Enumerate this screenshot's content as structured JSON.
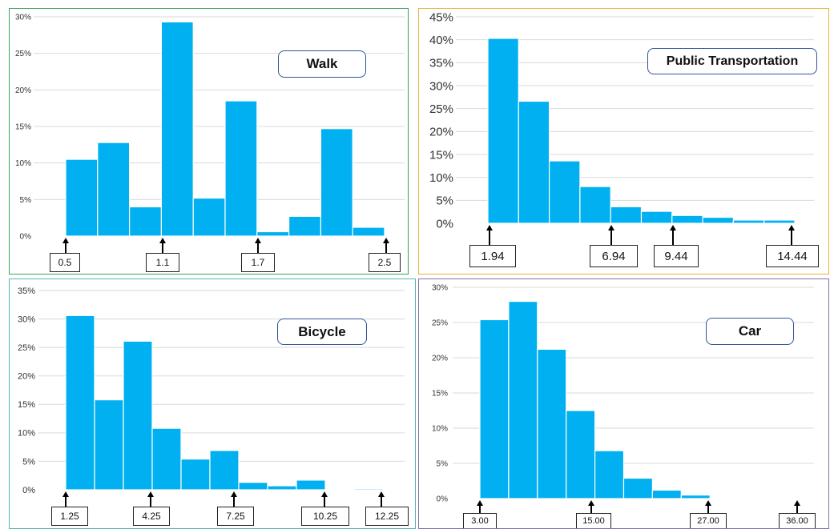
{
  "colors": {
    "bar": "#00b0f0",
    "gridline": "#d9d9d9",
    "walk_border": "#3aa35a",
    "public_border": "#e8b33a",
    "bicycle_border": "#4fb8b0",
    "car_border": "#7f6fb0"
  },
  "chart_data": [
    {
      "type": "bar",
      "title": "Walk",
      "values": [
        10.5,
        12.8,
        4.0,
        29.3,
        5.2,
        18.5,
        0.6,
        2.7,
        14.7,
        1.2
      ],
      "ylim": [
        0,
        30
      ],
      "yticks": [
        "0%",
        "5%",
        "10%",
        "15%",
        "20%",
        "25%",
        "30%"
      ],
      "markers": [
        "0.5",
        "1.1",
        "1.7",
        "2.5"
      ],
      "grid": true
    },
    {
      "type": "bar",
      "title": "Public Transportation",
      "values": [
        40.3,
        26.6,
        13.6,
        8.0,
        3.6,
        2.6,
        1.7,
        1.3,
        0.7,
        0.7
      ],
      "ylim": [
        0,
        45
      ],
      "yticks": [
        "0%",
        "5%",
        "10%",
        "15%",
        "20%",
        "25%",
        "30%",
        "35%",
        "40%",
        "45%"
      ],
      "markers": [
        "1.94",
        "6.94",
        "9.44",
        "14.44"
      ],
      "grid": true
    },
    {
      "type": "bar",
      "title": "Bicycle",
      "values": [
        30.6,
        15.8,
        26.1,
        10.8,
        5.4,
        6.9,
        1.3,
        0.7,
        1.7,
        0.0,
        0.2
      ],
      "ylim": [
        0,
        35
      ],
      "yticks": [
        "0%",
        "5%",
        "10%",
        "15%",
        "20%",
        "25%",
        "30%",
        "35%"
      ],
      "markers": [
        "1.25",
        "4.25",
        "7.25",
        "10.25",
        "12.25"
      ],
      "grid": true
    },
    {
      "type": "bar",
      "title": "Car",
      "values": [
        25.4,
        28.0,
        21.2,
        12.5,
        6.8,
        2.9,
        1.2,
        0.5,
        0.1,
        0.1,
        0.05
      ],
      "ylim": [
        0,
        30
      ],
      "yticks": [
        "0%",
        "5%",
        "10%",
        "15%",
        "20%",
        "25%",
        "30%"
      ],
      "markers": [
        "3.00",
        "15.00",
        "27.00",
        "36.00"
      ],
      "grid": true
    }
  ]
}
